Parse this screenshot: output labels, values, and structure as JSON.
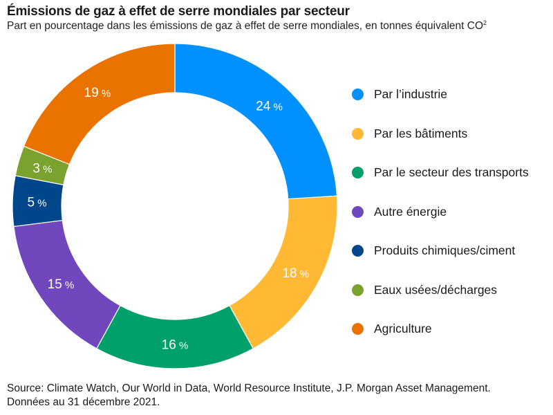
{
  "chart_data": {
    "type": "pie",
    "variant": "donut",
    "title": "Émissions de gaz à effet de serre mondiales par secteur",
    "subtitle": "Part en pourcentage dans les émissions de gaz à effet de serre mondiales, en tonnes équivalent CO",
    "subtitle_superscript": "2",
    "unit": "%",
    "start_angle_deg": 0,
    "direction": "clockwise",
    "legend_position": "right",
    "slices": [
      {
        "label": "Par l’industrie",
        "value": 24,
        "color": "#0091FF"
      },
      {
        "label": "Par les bâtiments",
        "value": 18,
        "color": "#FFB935"
      },
      {
        "label": "Par le secteur des transports",
        "value": 16,
        "color": "#00A06A"
      },
      {
        "label": "Autre énergie",
        "value": 15,
        "color": "#7147BE"
      },
      {
        "label": "Produits chimiques/ciment",
        "value": 5,
        "color": "#00468B"
      },
      {
        "label": "Eaux usées/décharges",
        "value": 3,
        "color": "#7BA22F"
      },
      {
        "label": "Agriculture",
        "value": 19,
        "color": "#EA7300"
      }
    ]
  },
  "footer": {
    "source": "Source: Climate Watch, Our World in Data, World Resource Institute, J.P. Morgan Asset Management.",
    "date": "Données au 31 décembre 2021."
  }
}
